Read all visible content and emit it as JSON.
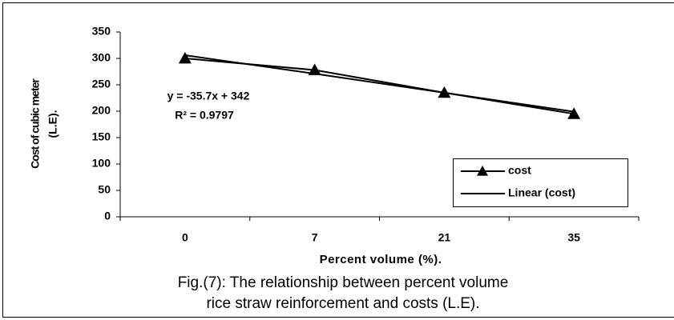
{
  "chart_data": {
    "type": "line",
    "categories": [
      "0",
      "7",
      "21",
      "35"
    ],
    "series": [
      {
        "name": "cost",
        "color": "#000000",
        "marker": "triangle",
        "values": [
          300,
          278,
          235,
          195
        ]
      },
      {
        "name": "Linear (cost)",
        "color": "#000000",
        "values": [
          306,
          271,
          235,
          199
        ]
      }
    ],
    "ylim": [
      0,
      350
    ],
    "yticks": [
      0,
      50,
      100,
      150,
      200,
      250,
      300,
      350
    ],
    "x_label": "Percent volume  (%).",
    "y_label": [
      "Cost of cubic meter",
      "(L.E)."
    ],
    "annotations": [
      "y = -35.7x + 342",
      "R² = 0.9797"
    ],
    "caption": [
      "Fig.(7): The relationship between percent volume",
      "rice straw reinforcement and costs (L.E)."
    ],
    "legend": "lower right"
  }
}
